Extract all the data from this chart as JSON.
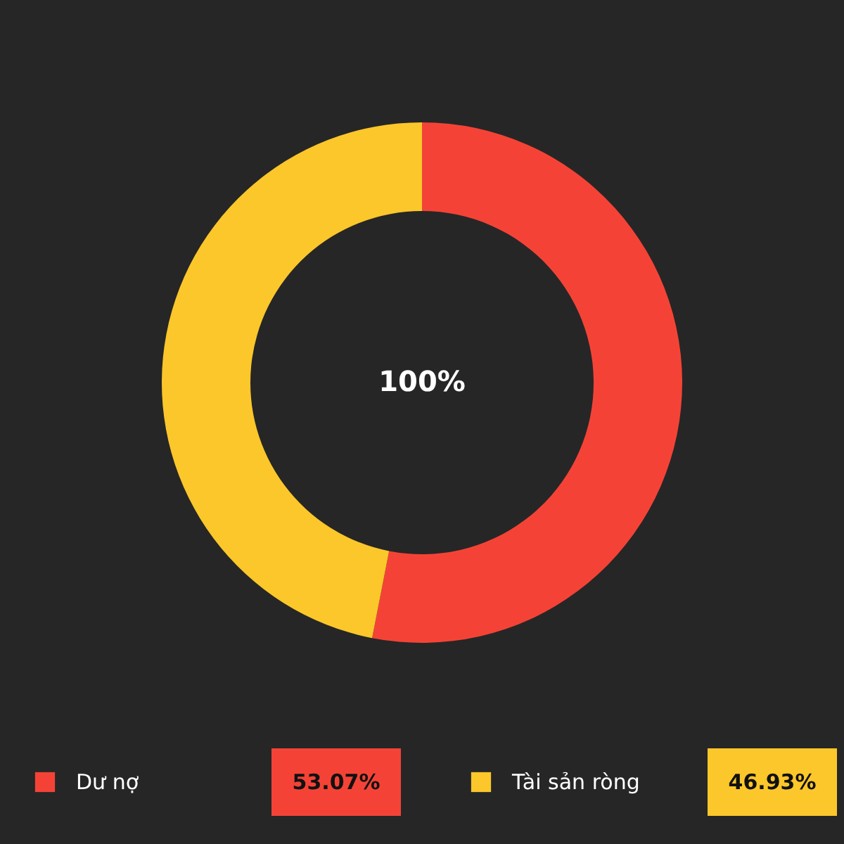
{
  "chart_data": {
    "type": "donut",
    "categories": [
      "Dư nợ",
      "Tài sản ròng"
    ],
    "values": [
      53.07,
      46.93
    ],
    "colors": [
      "#f44336",
      "#fcc72a"
    ],
    "annotations": [
      "100%"
    ],
    "legend": "bottom",
    "value_labels": [
      "53.07%",
      "46.93%"
    ]
  }
}
